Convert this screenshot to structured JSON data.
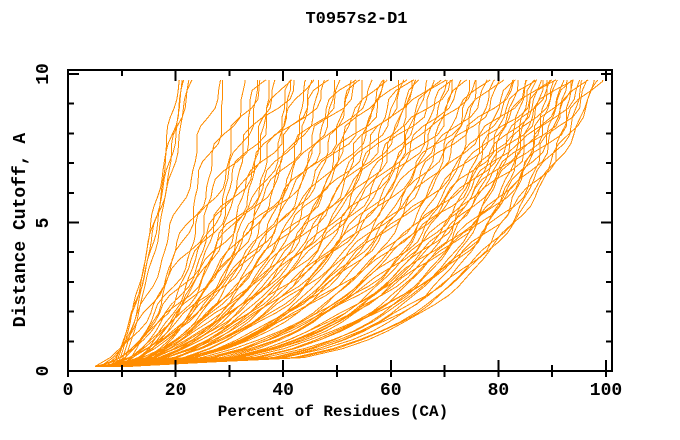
{
  "colors": {
    "curve": "#ff8c00",
    "frame": "#000000",
    "text": "#000000",
    "background": "#ffffff"
  },
  "chart_data": {
    "type": "line",
    "title": "T0957s2-D1",
    "xlabel": "Percent of Residues (CA)",
    "ylabel": "Distance Cutoff, A",
    "xlim": [
      0,
      100
    ],
    "ylim": [
      0,
      10
    ],
    "xticks_major": [
      0,
      20,
      40,
      60,
      80,
      100
    ],
    "xticks_minor": [
      10,
      30,
      50,
      70,
      90
    ],
    "yticks_major": [
      0,
      5,
      10
    ],
    "yticks_minor": [
      1,
      2,
      3,
      4,
      6,
      7,
      8,
      9
    ],
    "grid": false,
    "legend": null,
    "line_color": "#ff8c00",
    "y_start": 0.15,
    "y_end": 9.8,
    "y_step": 0.3,
    "curve_model": "x(y) = start_x + (top_x - start_x) * u^shape + wobble(amp,phase), u=(y-y_start)/(y_end-y_start), enforced non-decreasing; each row = [start_x, top_x, shape, wobble_amp, wobble_phase]",
    "curves": [
      [
        9,
        20.5,
        0.8,
        0.5,
        0.3
      ],
      [
        8.5,
        21.3,
        0.78,
        0.6,
        2.1
      ],
      [
        9.5,
        21.8,
        0.82,
        0.5,
        4.2
      ],
      [
        8,
        22.3,
        0.76,
        0.7,
        1.2
      ],
      [
        10,
        22.8,
        0.84,
        0.5,
        5.0
      ],
      [
        7,
        28,
        0.72,
        1.2,
        0.8
      ],
      [
        10,
        30,
        0.7,
        1.5,
        3.6
      ],
      [
        6,
        33,
        0.7,
        1.8,
        1.9
      ],
      [
        8,
        35,
        0.68,
        2.0,
        0.5
      ],
      [
        11,
        36,
        0.66,
        1.4,
        2.8
      ],
      [
        5,
        37,
        0.69,
        2.4,
        4.6
      ],
      [
        9,
        38,
        0.65,
        1.8,
        1.1
      ],
      [
        7.5,
        39,
        0.67,
        2.2,
        3.3
      ],
      [
        10.5,
        40,
        0.64,
        1.6,
        5.5
      ],
      [
        6,
        41,
        0.66,
        2.6,
        0.2
      ],
      [
        9.5,
        42,
        0.63,
        1.9,
        2.4
      ],
      [
        8,
        43,
        0.65,
        2.3,
        4.1
      ],
      [
        11.5,
        44,
        0.62,
        1.5,
        5.9
      ],
      [
        5.5,
        45,
        0.64,
        2.7,
        1.6
      ],
      [
        9,
        46,
        0.61,
        2.0,
        3.8
      ],
      [
        7,
        47,
        0.63,
        2.4,
        0.9
      ],
      [
        10,
        47.5,
        0.6,
        1.7,
        2.6
      ],
      [
        8.5,
        48,
        0.62,
        2.1,
        4.8
      ],
      [
        6.5,
        50,
        0.6,
        2.5,
        1.3
      ],
      [
        11,
        51,
        0.61,
        1.8,
        3.1
      ],
      [
        9,
        52,
        0.59,
        2.2,
        5.2
      ],
      [
        7.5,
        52.5,
        0.6,
        2.6,
        0.6
      ],
      [
        10.5,
        53,
        0.58,
        1.9,
        2.2
      ],
      [
        5,
        55,
        0.59,
        2.3,
        4.4
      ],
      [
        8,
        56,
        0.57,
        2.0,
        1.0
      ],
      [
        9.5,
        57,
        0.58,
        2.4,
        3.5
      ],
      [
        6.5,
        57.5,
        0.56,
        1.7,
        5.7
      ],
      [
        11,
        58,
        0.57,
        2.1,
        0.4
      ],
      [
        7,
        59,
        0.55,
        2.5,
        2.0
      ],
      [
        9,
        60,
        0.56,
        1.8,
        4.0
      ],
      [
        8,
        61,
        0.54,
        2.2,
        5.4
      ],
      [
        10,
        62,
        0.55,
        2.6,
        1.5
      ],
      [
        6,
        63,
        0.53,
        1.9,
        3.0
      ],
      [
        9.5,
        63.5,
        0.54,
        2.3,
        4.9
      ],
      [
        7.5,
        64,
        0.52,
        2.0,
        0.7
      ],
      [
        11.5,
        65,
        0.53,
        2.4,
        2.5
      ],
      [
        5.5,
        66,
        0.51,
        1.7,
        4.3
      ],
      [
        8.5,
        67,
        0.52,
        2.1,
        5.8
      ],
      [
        10,
        68,
        0.5,
        2.5,
        1.8
      ],
      [
        6.5,
        68.5,
        0.51,
        1.8,
        3.4
      ],
      [
        9,
        69,
        0.49,
        2.2,
        5.1
      ],
      [
        7,
        70,
        0.5,
        2.6,
        0.1
      ],
      [
        10.5,
        71,
        0.48,
        1.9,
        2.3
      ],
      [
        8,
        72,
        0.49,
        2.3,
        4.5
      ],
      [
        5,
        72.5,
        0.47,
        2.0,
        0.95
      ],
      [
        9.5,
        73,
        0.48,
        2.4,
        2.9
      ],
      [
        11,
        74,
        0.46,
        1.7,
        4.7
      ],
      [
        6,
        75,
        0.47,
        2.1,
        0.35
      ],
      [
        8.5,
        76,
        0.45,
        2.5,
        2.7
      ],
      [
        10,
        77,
        0.46,
        1.8,
        5.3
      ],
      [
        7.5,
        77.5,
        0.44,
        2.2,
        1.4
      ],
      [
        9,
        78,
        0.45,
        2.6,
        3.2
      ],
      [
        5.5,
        79,
        0.43,
        1.9,
        5.6
      ],
      [
        8,
        80,
        0.44,
        2.3,
        1.7
      ],
      [
        10.5,
        81,
        0.42,
        2.0,
        3.9
      ],
      [
        6.5,
        82,
        0.43,
        2.4,
        0.25
      ],
      [
        9.5,
        83,
        0.41,
        1.7,
        2.15
      ],
      [
        7,
        84,
        0.42,
        2.1,
        4.35
      ],
      [
        11,
        84.5,
        0.4,
        2.5,
        0.65
      ],
      [
        8.5,
        85,
        0.41,
        1.8,
        2.85
      ],
      [
        5,
        86,
        0.39,
        2.2,
        5.05
      ],
      [
        9,
        86.5,
        0.4,
        2.6,
        1.25
      ],
      [
        10,
        87,
        0.38,
        1.9,
        3.45
      ],
      [
        6,
        87.5,
        0.39,
        2.3,
        5.65
      ],
      [
        8,
        88,
        0.37,
        2.0,
        1.85
      ],
      [
        11.5,
        88.5,
        0.38,
        2.4,
        4.05
      ],
      [
        7.5,
        89,
        0.36,
        1.7,
        0.45
      ],
      [
        9.5,
        89.5,
        0.37,
        2.1,
        2.65
      ],
      [
        5.5,
        90,
        0.35,
        2.5,
        4.85
      ],
      [
        8.5,
        90.5,
        0.36,
        1.8,
        1.05
      ],
      [
        10.5,
        91,
        0.34,
        2.2,
        3.25
      ],
      [
        6.5,
        91.5,
        0.35,
        2.6,
        5.45
      ],
      [
        9,
        92,
        0.33,
        1.9,
        1.65
      ],
      [
        7,
        92.5,
        0.34,
        2.3,
        3.85
      ],
      [
        11,
        93,
        0.32,
        2.0,
        0.05
      ],
      [
        8,
        93.5,
        0.33,
        2.4,
        2.35
      ],
      [
        10,
        94,
        0.31,
        1.7,
        4.55
      ],
      [
        5,
        94.5,
        0.32,
        2.1,
        0.75
      ],
      [
        9.5,
        95,
        0.3,
        2.5,
        2.95
      ],
      [
        6,
        95.5,
        0.31,
        1.8,
        5.15
      ],
      [
        8.5,
        96,
        0.3,
        2.2,
        1.35
      ],
      [
        10,
        97,
        0.28,
        1.5,
        3.55
      ],
      [
        7,
        97.5,
        0.29,
        1.9,
        5.75
      ],
      [
        9,
        98,
        0.27,
        1.3,
        2.05
      ],
      [
        11,
        99,
        0.3,
        1.0,
        4.25
      ]
    ]
  }
}
